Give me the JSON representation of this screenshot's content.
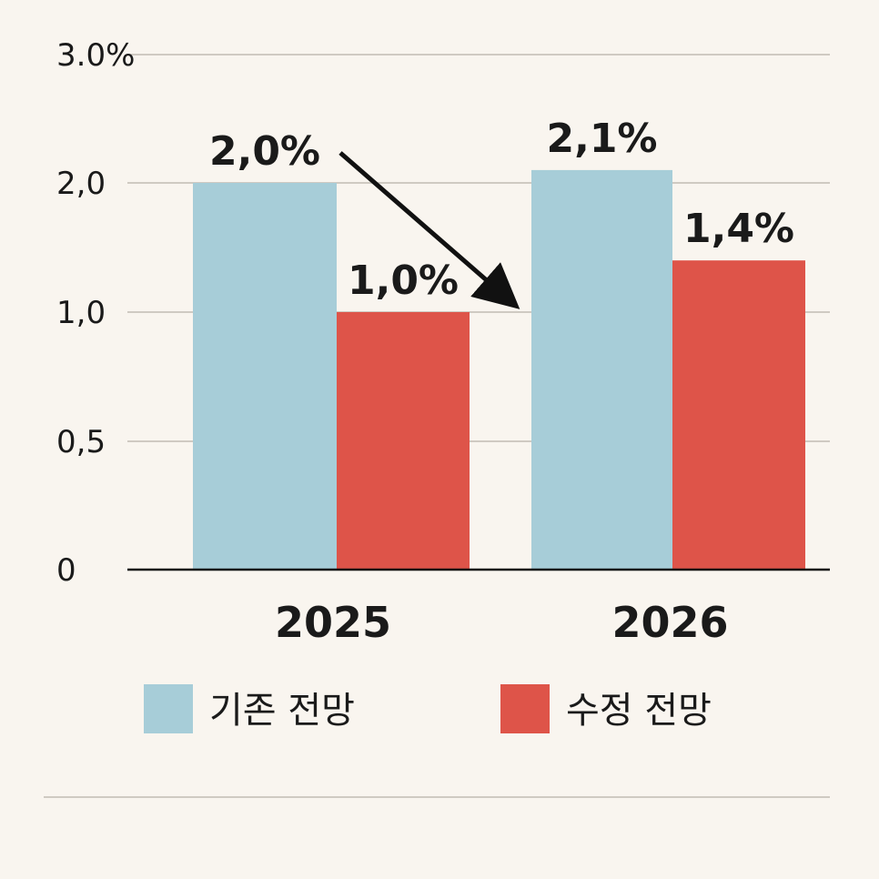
{
  "chart_data": {
    "type": "bar",
    "title": "",
    "xlabel": "",
    "ylabel": "",
    "categories": [
      "2025",
      "2026"
    ],
    "series": [
      {
        "name": "기존 전망",
        "values": [
          2.0,
          2.1
        ],
        "labels": [
          "2,0%",
          "2,1%"
        ],
        "color": "#a7cdd8"
      },
      {
        "name": "수정 전망",
        "values": [
          1.0,
          1.4
        ],
        "labels": [
          "1,0%",
          "1,4%"
        ],
        "color": "#de5449"
      }
    ],
    "ylim": [
      0,
      3.0
    ],
    "y_ticks": [
      {
        "value": 0,
        "label": "0"
      },
      {
        "value": 0.5,
        "label": "0,5"
      },
      {
        "value": 1.0,
        "label": "1,0"
      },
      {
        "value": 2.0,
        "label": "2,0"
      },
      {
        "value": 3.0,
        "label": "3.0%"
      }
    ],
    "grid": true,
    "legend": "bottom",
    "annotations": [
      {
        "type": "arrow",
        "from": "2025 기존 전망",
        "to": "2026"
      }
    ]
  }
}
